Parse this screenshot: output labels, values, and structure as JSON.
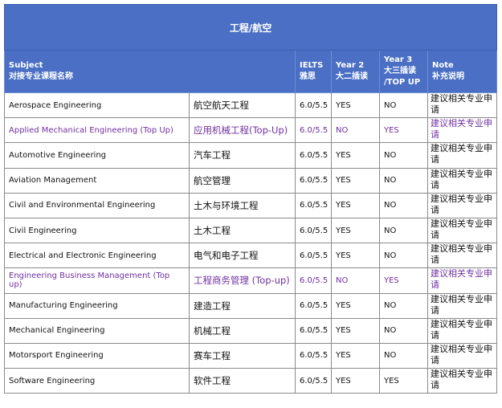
{
  "header": {
    "title": "工程/航空"
  },
  "table": {
    "columns": [
      [
        "Subject",
        "对接专业课程名称"
      ],
      [
        "IELTS",
        "雅思"
      ],
      [
        "Year 2",
        "大二插读"
      ],
      [
        "Year 3",
        "大三插读",
        "/TOP UP"
      ],
      [
        "Note",
        "补充说明"
      ]
    ],
    "rows": [
      [
        "Aerospace Engineering",
        "航空航天工程",
        "6.0/5.5",
        "YES",
        "NO",
        "建议相关专业申请"
      ],
      [
        "Applied Mechanical Engineering (Top Up)",
        "应用机械工程(Top-Up)",
        "6.0/5.5",
        "NO",
        "YES",
        "建议相关专业申请"
      ],
      [
        "Automotive Engineering",
        "汽车工程",
        "6.0/5.5",
        "YES",
        "NO",
        "建议相关专业申请"
      ],
      [
        "Aviation Management",
        "航空管理",
        "6.0/5.5",
        "YES",
        "NO",
        "建议相关专业申请"
      ],
      [
        "Civil and Environmental Engineering",
        "土木与环境工程",
        "6.0/5.5",
        "YES",
        "NO",
        "建议相关专业申请"
      ],
      [
        "Civil Engineering",
        "土木工程",
        "6.0/5.5",
        "YES",
        "NO",
        "建议相关专业申请"
      ],
      [
        "Electrical and Electronic Engineering",
        "电气和电子工程",
        "6.0/5.5",
        "YES",
        "NO",
        "建议相关专业申请"
      ],
      [
        "Engineering Business Management (Top up)",
        "工程商务管理 (Top-up)",
        "6.0/5.5",
        "NO",
        "YES",
        "建议相关专业申请"
      ],
      [
        "Manufacturing Engineering",
        "建造工程",
        "6.0/5.5",
        "YES",
        "NO",
        "建议相关专业申请"
      ],
      [
        "Mechanical Engineering",
        "机械工程",
        "6.0/5.5",
        "YES",
        "NO",
        "建议相关专业申请"
      ],
      [
        "Motorsport Engineering",
        "赛车工程",
        "6.0/5.5",
        "YES",
        "NO",
        "建议相关专业申请"
      ],
      [
        "Software Engineering",
        "软件工程",
        "6.0/5.5",
        "YES",
        "YES",
        "建议相关专业申请"
      ]
    ]
  }
}
